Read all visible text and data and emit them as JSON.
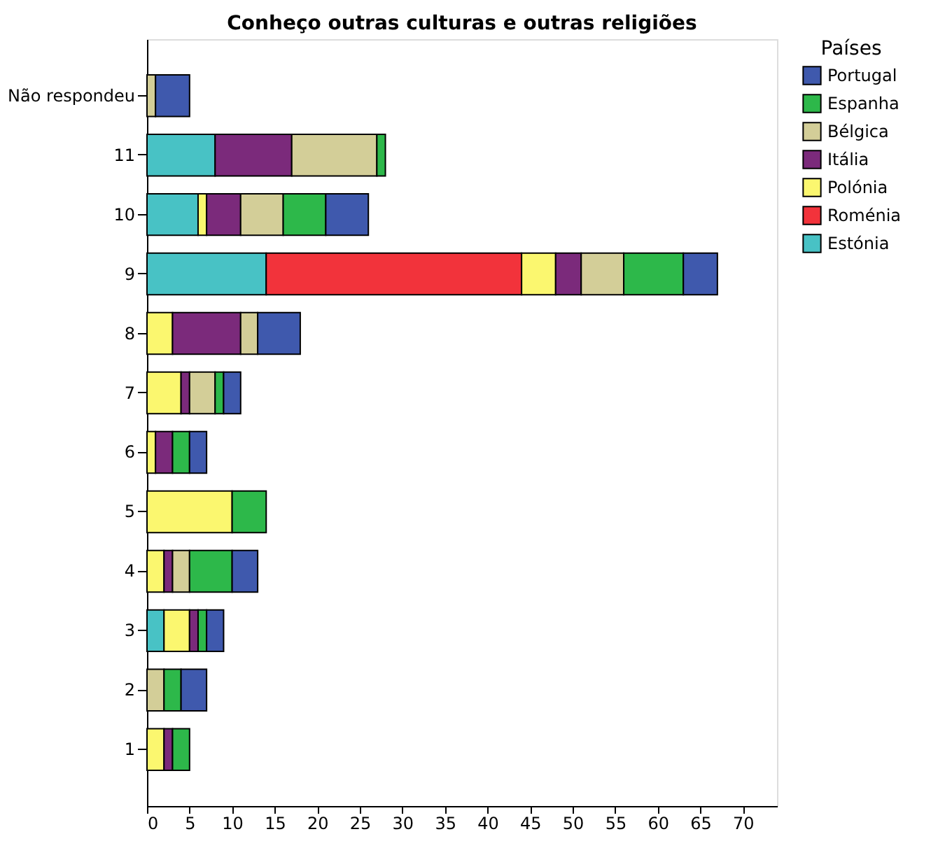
{
  "chart_data": {
    "type": "bar",
    "orientation": "horizontal",
    "stacked": true,
    "title": "Conheço outras culturas e outras religiões",
    "legend_title": "Países",
    "legend": "right",
    "categories": [
      "Não respondeu",
      "11",
      "10",
      "9",
      "8",
      "7",
      "6",
      "5",
      "4",
      "3",
      "2",
      "1"
    ],
    "series": [
      {
        "name": "Estónia",
        "color": "#48c2c5",
        "values": [
          null,
          8,
          6,
          14,
          null,
          null,
          null,
          null,
          null,
          2,
          null,
          null
        ]
      },
      {
        "name": "Roménia",
        "color": "#f2333b",
        "values": [
          null,
          null,
          null,
          30,
          null,
          null,
          null,
          null,
          null,
          null,
          null,
          null
        ]
      },
      {
        "name": "Polónia",
        "color": "#fbf76f",
        "values": [
          null,
          null,
          1,
          4,
          3,
          4,
          1,
          10,
          2,
          3,
          null,
          2
        ]
      },
      {
        "name": "Itália",
        "color": "#7b2a7b",
        "values": [
          null,
          9,
          4,
          3,
          8,
          1,
          2,
          null,
          1,
          1,
          null,
          1
        ]
      },
      {
        "name": "Bélgica",
        "color": "#d3ce98",
        "values": [
          1,
          10,
          5,
          5,
          2,
          3,
          null,
          null,
          2,
          null,
          2,
          null
        ]
      },
      {
        "name": "Espanha",
        "color": "#2db84a",
        "values": [
          null,
          1,
          5,
          7,
          null,
          1,
          2,
          4,
          5,
          1,
          2,
          2
        ]
      },
      {
        "name": "Portugal",
        "color": "#3f59ad",
        "values": [
          4,
          null,
          5,
          4,
          5,
          2,
          2,
          null,
          3,
          2,
          3,
          null
        ]
      }
    ],
    "xlim": [
      0,
      74
    ],
    "xticks": [
      0,
      5,
      10,
      15,
      20,
      25,
      30,
      35,
      40,
      45,
      50,
      55,
      60,
      65,
      70
    ],
    "grid": false
  }
}
